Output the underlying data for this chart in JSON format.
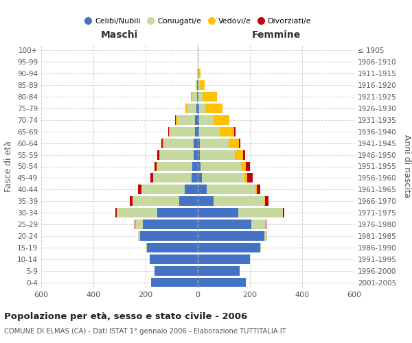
{
  "age_groups": [
    "0-4",
    "5-9",
    "10-14",
    "15-19",
    "20-24",
    "25-29",
    "30-34",
    "35-39",
    "40-44",
    "45-49",
    "50-54",
    "55-59",
    "60-64",
    "65-69",
    "70-74",
    "75-79",
    "80-84",
    "85-89",
    "90-94",
    "95-99",
    "100+"
  ],
  "birth_years": [
    "2001-2005",
    "1996-2000",
    "1991-1995",
    "1986-1990",
    "1981-1985",
    "1976-1980",
    "1971-1975",
    "1966-1970",
    "1961-1965",
    "1956-1960",
    "1951-1955",
    "1946-1950",
    "1941-1945",
    "1936-1940",
    "1931-1935",
    "1926-1930",
    "1921-1925",
    "1916-1920",
    "1911-1915",
    "1906-1910",
    "≤ 1905"
  ],
  "male": {
    "celibi": [
      180,
      165,
      185,
      195,
      220,
      210,
      155,
      70,
      50,
      25,
      20,
      15,
      15,
      10,
      10,
      5,
      3,
      2,
      0,
      0,
      0
    ],
    "coniugati": [
      0,
      0,
      0,
      2,
      8,
      30,
      155,
      180,
      165,
      145,
      135,
      130,
      115,
      95,
      70,
      35,
      18,
      5,
      2,
      0,
      0
    ],
    "vedovi": [
      0,
      0,
      0,
      0,
      0,
      0,
      0,
      1,
      1,
      1,
      2,
      3,
      5,
      5,
      5,
      8,
      5,
      2,
      0,
      0,
      0
    ],
    "divorziati": [
      0,
      0,
      0,
      0,
      0,
      2,
      5,
      10,
      12,
      10,
      8,
      8,
      5,
      2,
      2,
      0,
      0,
      0,
      0,
      0,
      0
    ]
  },
  "female": {
    "nubili": [
      185,
      160,
      200,
      240,
      255,
      205,
      155,
      60,
      35,
      15,
      10,
      8,
      8,
      5,
      5,
      5,
      3,
      2,
      0,
      0,
      0
    ],
    "coniugate": [
      0,
      0,
      0,
      3,
      12,
      55,
      170,
      195,
      185,
      165,
      155,
      135,
      110,
      80,
      55,
      25,
      15,
      5,
      2,
      0,
      0
    ],
    "vedove": [
      0,
      0,
      0,
      0,
      0,
      1,
      2,
      3,
      5,
      10,
      20,
      30,
      40,
      55,
      60,
      65,
      55,
      20,
      8,
      2,
      0
    ],
    "divorziate": [
      0,
      0,
      0,
      0,
      0,
      2,
      5,
      12,
      15,
      20,
      15,
      8,
      5,
      5,
      2,
      0,
      0,
      0,
      0,
      0,
      0
    ]
  },
  "colors": {
    "celibi_nubili": "#4472c4",
    "coniugati": "#c5d9a0",
    "vedovi": "#ffc000",
    "divorziati": "#c0000b"
  },
  "title": "Popolazione per età, sesso e stato civile - 2006",
  "subtitle": "COMUNE DI ELMAS (CA) - Dati ISTAT 1° gennaio 2006 - Elaborazione TUTTITALIA.IT",
  "ylabel_left": "Fasce di età",
  "ylabel_right": "Anni di nascita",
  "xlabel_left": "Maschi",
  "xlabel_right": "Femmine",
  "xlim": 600,
  "bg_color": "#ffffff",
  "grid_color": "#cccccc",
  "legend_labels": [
    "Celibi/Nubili",
    "Coniugati/e",
    "Vedovi/e",
    "Divorziati/e"
  ]
}
